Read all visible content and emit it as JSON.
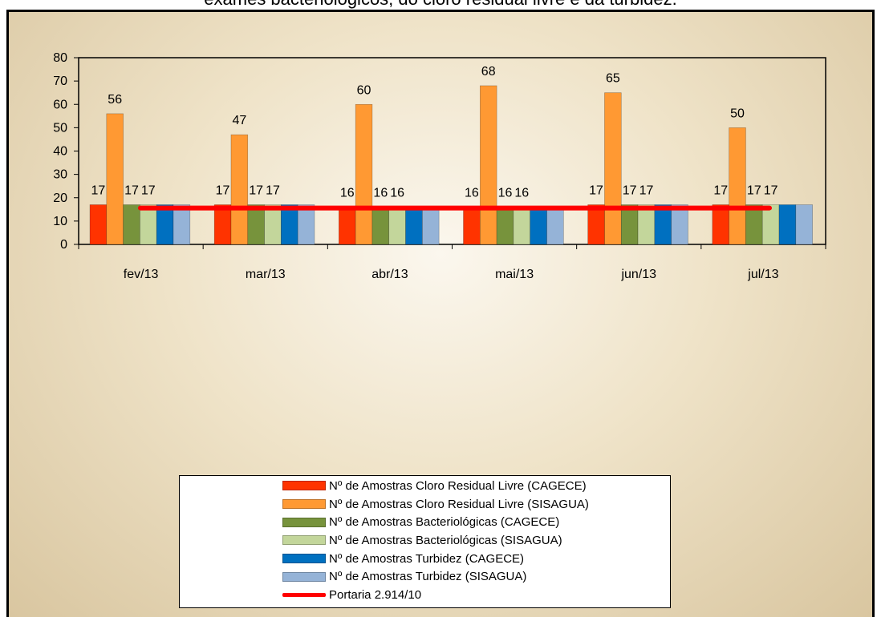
{
  "header": {
    "text": "exames bacteriológicos, do cloro residual livre e da turbidez."
  },
  "chart_data": {
    "type": "bar",
    "categories": [
      "fev/13",
      "mar/13",
      "abr/13",
      "mai/13",
      "jun/13",
      "jul/13"
    ],
    "ylim": [
      0,
      80
    ],
    "yticks": [
      0,
      10,
      20,
      30,
      40,
      50,
      60,
      70,
      80
    ],
    "series": [
      {
        "name": "Nº de Amostras Cloro Residual Livre (CAGECE)",
        "color": "#ff3300",
        "values": [
          17,
          17,
          16,
          16,
          17,
          17
        ],
        "labels": [
          "17",
          "17",
          "16",
          "16",
          "17",
          "17"
        ]
      },
      {
        "name": "Nº de Amostras Cloro Residual Livre (SISAGUA)",
        "color": "#ff9933",
        "values": [
          56,
          47,
          60,
          68,
          65,
          50
        ],
        "labels": [
          "56",
          "47",
          "60",
          "68",
          "65",
          "50"
        ]
      },
      {
        "name": "Nº de Amostras Bacteriológicas (CAGECE)",
        "color": "#77933c",
        "values": [
          17,
          17,
          16,
          16,
          17,
          17
        ],
        "labels": [
          "17",
          "17",
          "16",
          "16",
          "17",
          "17"
        ]
      },
      {
        "name": "Nº de Amostras Bacteriológicas (SISAGUA)",
        "color": "#c3d69b",
        "values": [
          17,
          17,
          16,
          16,
          17,
          17
        ],
        "labels": [
          "17",
          "17",
          "16",
          "16",
          "17",
          "17"
        ]
      },
      {
        "name": "Nº de Amostras Turbidez (CAGECE)",
        "color": "#0070c0",
        "values": [
          17,
          17,
          16,
          16,
          17,
          17
        ]
      },
      {
        "name": "Nº de Amostras Turbidez (SISAGUA)",
        "color": "#95b3d7",
        "values": [
          17,
          17,
          16,
          16,
          17,
          17
        ]
      }
    ],
    "reference_line": {
      "name": "Portaria 2.914/10",
      "color": "#ff0000",
      "value": 15.6
    },
    "legend_position": "bottom",
    "grid": false
  }
}
